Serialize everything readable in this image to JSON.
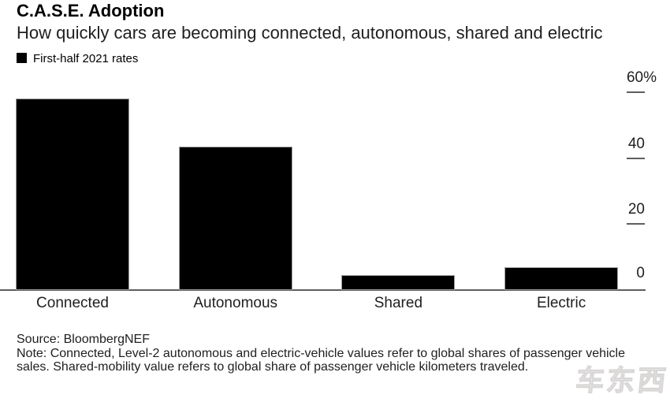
{
  "header": {
    "title": "C.A.S.E. Adoption",
    "subtitle": "How quickly cars are becoming connected, autonomous, shared and electric"
  },
  "legend": {
    "label": "First-half 2021 rates",
    "swatch_color": "#000000"
  },
  "chart_data": {
    "type": "bar",
    "title": "C.A.S.E. Adoption",
    "subtitle": "How quickly cars are becoming connected, autonomous, shared and electric",
    "series_name": "First-half 2021 rates",
    "categories": [
      "Connected",
      "Autonomous",
      "Shared",
      "Electric"
    ],
    "values": [
      58,
      43.5,
      4.5,
      7
    ],
    "unit": "%",
    "ylim": [
      0,
      60
    ],
    "yticks": [
      {
        "value": 60,
        "label": "60%"
      },
      {
        "value": 40,
        "label": "40"
      },
      {
        "value": 20,
        "label": "20"
      },
      {
        "value": 0,
        "label": "0"
      }
    ],
    "axis_position": "right",
    "grid": false,
    "bar_color": "#000000",
    "xlabel": "",
    "ylabel": ""
  },
  "footer": {
    "source": "Source: BloombergNEF",
    "note": "Note: Connected, Level-2 autonomous and electric-vehicle values refer to global shares of passenger vehicle sales. Shared-mobility value refers to global share of passenger vehicle kilometers traveled."
  },
  "watermark": {
    "text": "车东西"
  }
}
